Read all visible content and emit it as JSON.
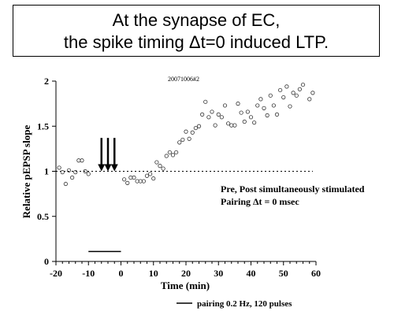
{
  "title": {
    "line1": "At the synapse of EC,",
    "line2": "the spike timing Δt=0 induced LTP."
  },
  "chart_data": {
    "type": "scatter",
    "subtitle": "20071006#2",
    "xlabel": "Time (min)",
    "ylabel": "Relative pEPSP slope",
    "xlim": [
      -20,
      60
    ],
    "ylim": [
      0,
      2
    ],
    "xticks": [
      "-20",
      "-10",
      "0",
      "10",
      "20",
      "30",
      "40",
      "50",
      "60"
    ],
    "yticks": [
      "0",
      "0.5",
      "1",
      "1.5",
      "2"
    ],
    "baseline": 1,
    "annotation_line1": "Pre, Post simultaneously stimulated",
    "annotation_line2": "Pairing Δt = 0 msec",
    "legend_label": "pairing 0.2 Hz, 120 pulses",
    "pairing_interval": [
      -10,
      0
    ],
    "arrow_times": [
      -6,
      -4,
      -2
    ],
    "points": [
      [
        -19,
        1.04
      ],
      [
        -18,
        0.99
      ],
      [
        -17,
        0.86
      ],
      [
        -16,
        1.01
      ],
      [
        -15,
        0.93
      ],
      [
        -14,
        0.99
      ],
      [
        -13,
        1.12
      ],
      [
        -12,
        1.12
      ],
      [
        -11,
        1.0
      ],
      [
        -10,
        0.97
      ],
      [
        1,
        0.91
      ],
      [
        2,
        0.87
      ],
      [
        3,
        0.93
      ],
      [
        4,
        0.93
      ],
      [
        5,
        0.89
      ],
      [
        6,
        0.89
      ],
      [
        7,
        0.89
      ],
      [
        8,
        0.95
      ],
      [
        9,
        0.97
      ],
      [
        10,
        0.92
      ],
      [
        11,
        1.1
      ],
      [
        12,
        1.06
      ],
      [
        13,
        1.03
      ],
      [
        14,
        1.17
      ],
      [
        15,
        1.21
      ],
      [
        16,
        1.18
      ],
      [
        17,
        1.21
      ],
      [
        18,
        1.32
      ],
      [
        19,
        1.35
      ],
      [
        20,
        1.44
      ],
      [
        21,
        1.36
      ],
      [
        22,
        1.43
      ],
      [
        23,
        1.48
      ],
      [
        24,
        1.5
      ],
      [
        25,
        1.63
      ],
      [
        26,
        1.77
      ],
      [
        27,
        1.6
      ],
      [
        28,
        1.66
      ],
      [
        29,
        1.51
      ],
      [
        30,
        1.63
      ],
      [
        31,
        1.6
      ],
      [
        32,
        1.73
      ],
      [
        33,
        1.53
      ],
      [
        34,
        1.51
      ],
      [
        35,
        1.51
      ],
      [
        36,
        1.75
      ],
      [
        37,
        1.65
      ],
      [
        38,
        1.55
      ],
      [
        39,
        1.66
      ],
      [
        40,
        1.6
      ],
      [
        41,
        1.54
      ],
      [
        42,
        1.73
      ],
      [
        43,
        1.8
      ],
      [
        44,
        1.7
      ],
      [
        45,
        1.62
      ],
      [
        46,
        1.84
      ],
      [
        47,
        1.73
      ],
      [
        48,
        1.63
      ],
      [
        49,
        1.9
      ],
      [
        50,
        1.82
      ],
      [
        51,
        1.94
      ],
      [
        52,
        1.72
      ],
      [
        53,
        1.87
      ],
      [
        54,
        1.84
      ],
      [
        55,
        1.91
      ],
      [
        56,
        1.96
      ],
      [
        58,
        1.8
      ],
      [
        59,
        1.87
      ]
    ]
  }
}
